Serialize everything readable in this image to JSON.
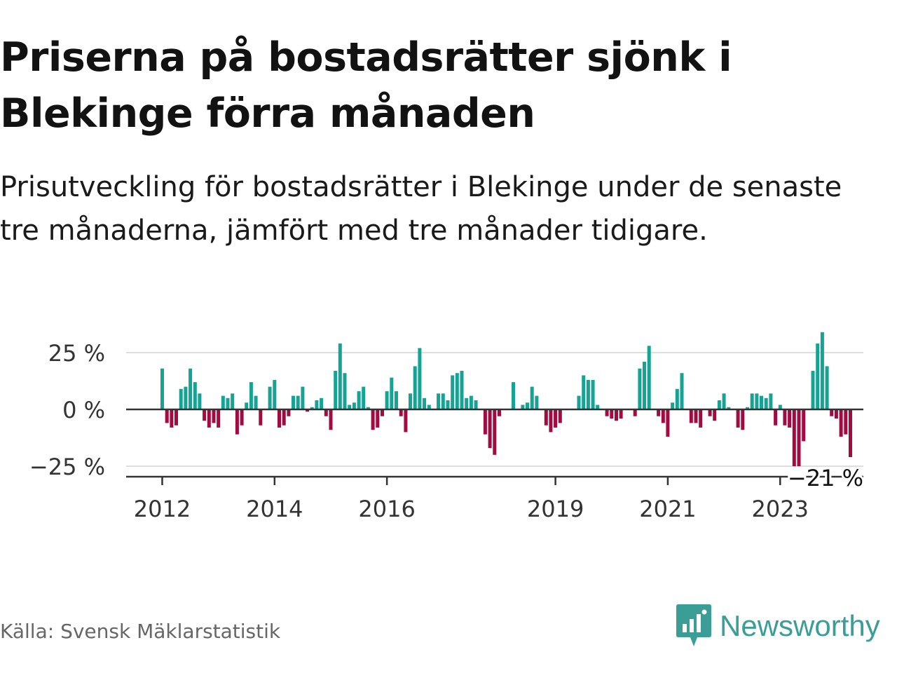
{
  "title": "Priserna på bostadsrätter sjönk i Blekinge förra månaden",
  "subtitle": "Prisutveckling för bostadsrätter i Blekinge under de senaste tre månaderna, jämfört med tre månader tidigare.",
  "source": "Källa: Svensk Mäklarstatistik",
  "brand": {
    "name": "Newsworthy",
    "logo_icon": "newsworthy-chart-bubble-icon"
  },
  "colors": {
    "positive": "#16a394",
    "negative": "#a10b3f",
    "grid": "#dedede",
    "axis": "#333333",
    "brand": "#3a9e96"
  },
  "chart_data": {
    "type": "bar",
    "x_tick_labels": [
      "2012",
      "2014",
      "2016",
      "2019",
      "2021",
      "2023"
    ],
    "x_tick_years": [
      2012,
      2014,
      2016,
      2019,
      2021,
      2023
    ],
    "y_ticks": [
      25,
      0,
      -25
    ],
    "y_tick_labels": [
      "25 %",
      "0 %",
      "−25 %"
    ],
    "ylim": [
      -28,
      36
    ],
    "grid": true,
    "last_value_label": "−21 %",
    "start_month": "2012-01",
    "values": [
      18,
      -6,
      -8,
      -7,
      9,
      10,
      18,
      12,
      7,
      -5,
      -8,
      -6,
      -8,
      6,
      5,
      7,
      -11,
      -7,
      3,
      12,
      6,
      -7,
      0,
      10,
      13,
      -8,
      -7,
      -3,
      6,
      6,
      10,
      -1,
      1,
      4,
      5,
      -3,
      -9,
      17,
      29,
      16,
      2,
      3,
      8,
      10,
      1,
      -9,
      -8,
      -3,
      8,
      14,
      8,
      -3,
      -10,
      7,
      19,
      27,
      5,
      2,
      0,
      7,
      7,
      4,
      15,
      16,
      17,
      5,
      6,
      4,
      0,
      -11,
      -17,
      -20,
      -3,
      0,
      0,
      12,
      0,
      2,
      3,
      10,
      6,
      0,
      -7,
      -10,
      -8,
      -6,
      0,
      0,
      0,
      6,
      15,
      13,
      13,
      2,
      0,
      -3,
      -4,
      -5,
      -4,
      0,
      0,
      -3,
      18,
      21,
      28,
      0,
      -3,
      -6,
      -12,
      3,
      9,
      16,
      0,
      -6,
      -6,
      -8,
      0,
      -3,
      -5,
      4,
      7,
      1,
      0,
      -8,
      -9,
      1,
      7,
      7,
      6,
      5,
      7,
      -7,
      2,
      -7,
      -8,
      -25,
      -25,
      -14,
      0,
      17,
      29,
      34,
      19,
      -3,
      -4,
      -12,
      -11,
      -21
    ]
  }
}
